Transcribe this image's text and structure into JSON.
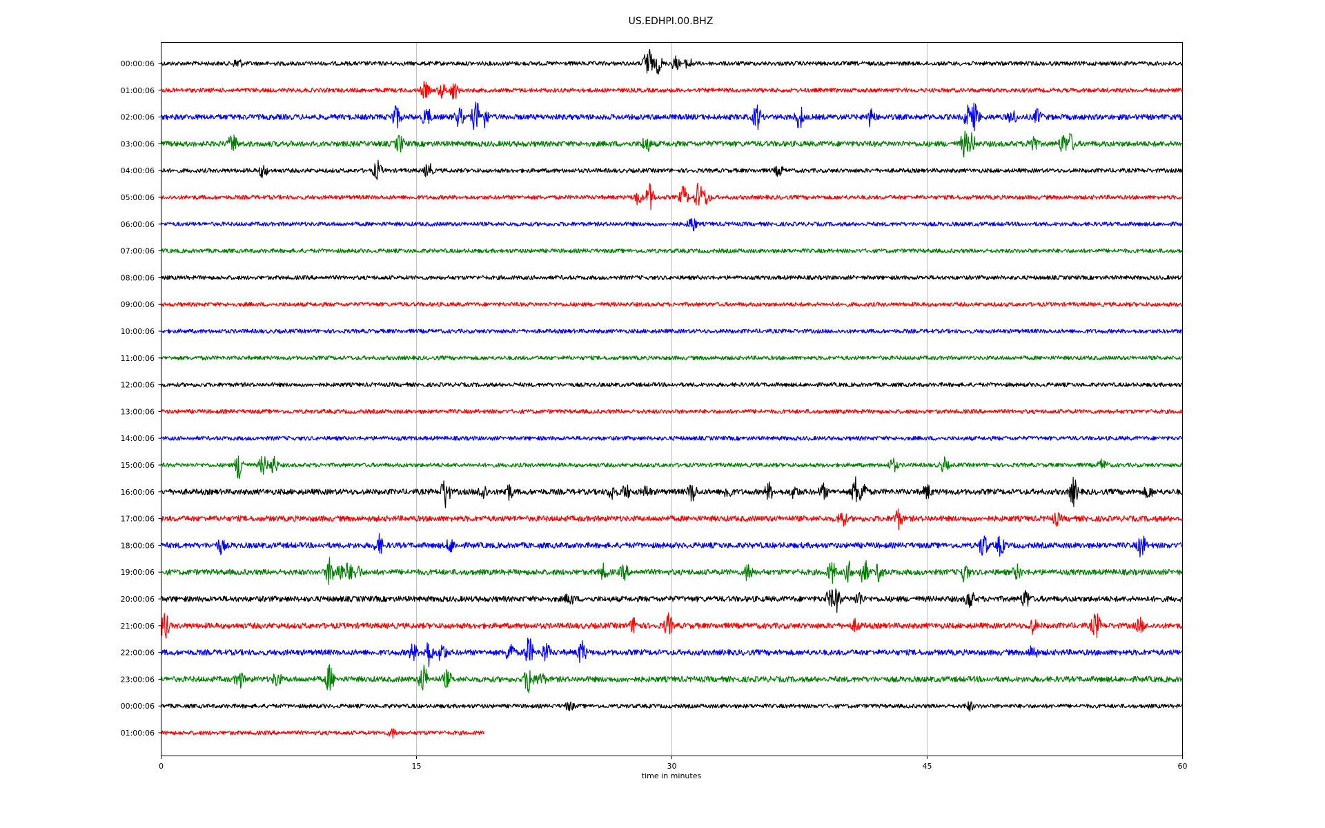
{
  "chart_data": {
    "type": "line",
    "title": "US.EDHPI.00.BHZ",
    "xlabel": "time in minutes",
    "xlim": [
      0,
      60
    ],
    "xticks": [
      "0",
      "15",
      "30",
      "45",
      "60"
    ],
    "grid_x": true,
    "row_labels": [
      "00:00:06",
      "01:00:06",
      "02:00:06",
      "03:00:06",
      "04:00:06",
      "05:00:06",
      "06:00:06",
      "07:00:06",
      "08:00:06",
      "09:00:06",
      "10:00:06",
      "11:00:06",
      "12:00:06",
      "13:00:06",
      "14:00:06",
      "15:00:06",
      "16:00:06",
      "17:00:06",
      "18:00:06",
      "19:00:06",
      "20:00:06",
      "21:00:06",
      "22:00:06",
      "23:00:06",
      "00:00:06",
      "01:00:06"
    ],
    "row_colors": [
      "#000000",
      "#ff0000",
      "#0000ff",
      "#008000"
    ],
    "row_end_minutes": [
      60,
      60,
      60,
      60,
      60,
      60,
      60,
      60,
      60,
      60,
      60,
      60,
      60,
      60,
      60,
      60,
      60,
      60,
      60,
      60,
      60,
      60,
      60,
      60,
      60,
      19
    ],
    "noise_level": [
      3,
      3,
      4,
      4,
      3,
      3,
      3,
      3,
      3,
      3,
      3,
      3,
      3,
      3,
      3,
      3,
      4,
      4,
      4,
      4,
      4,
      4,
      4,
      4,
      3,
      3
    ],
    "events": [
      [
        [
          4.5,
          8
        ],
        [
          28.6,
          30
        ],
        [
          29.2,
          14
        ],
        [
          30.2,
          10
        ],
        [
          31,
          8
        ]
      ],
      [
        [
          15.5,
          12
        ],
        [
          16.5,
          10
        ],
        [
          17.2,
          14
        ]
      ],
      [
        [
          13.8,
          18
        ],
        [
          15.6,
          14
        ],
        [
          17.5,
          14
        ],
        [
          18.5,
          24
        ],
        [
          19,
          14
        ],
        [
          35,
          18
        ],
        [
          37.5,
          18
        ],
        [
          41.7,
          14
        ],
        [
          47.4,
          16
        ],
        [
          47.8,
          20
        ],
        [
          50,
          10
        ],
        [
          51.5,
          10
        ]
      ],
      [
        [
          4.2,
          14
        ],
        [
          14,
          12
        ],
        [
          28.5,
          12
        ],
        [
          47.2,
          18
        ],
        [
          47.6,
          14
        ],
        [
          51.2,
          14
        ],
        [
          53,
          14
        ],
        [
          53.4,
          14
        ]
      ],
      [
        [
          6,
          10
        ],
        [
          12.7,
          14
        ],
        [
          15.7,
          12
        ],
        [
          36.3,
          8
        ]
      ],
      [
        [
          28,
          10
        ],
        [
          28.7,
          20
        ],
        [
          30.7,
          16
        ],
        [
          31.6,
          24
        ],
        [
          32,
          12
        ]
      ],
      [
        [
          31.2,
          12
        ]
      ],
      [],
      [],
      [],
      [],
      [],
      [],
      [],
      [],
      [
        [
          4.6,
          24
        ],
        [
          6,
          14
        ],
        [
          6.6,
          14
        ],
        [
          43,
          10
        ],
        [
          46,
          10
        ],
        [
          55.3,
          8
        ]
      ],
      [
        [
          16.7,
          24
        ],
        [
          18.9,
          12
        ],
        [
          20.4,
          12
        ],
        [
          26.5,
          10
        ],
        [
          27.3,
          10
        ],
        [
          28.5,
          8
        ],
        [
          31.2,
          14
        ],
        [
          33.3,
          10
        ],
        [
          35.7,
          12
        ],
        [
          37.2,
          8
        ],
        [
          38.9,
          10
        ],
        [
          40.8,
          20
        ],
        [
          41.2,
          18
        ],
        [
          45,
          10
        ],
        [
          53.6,
          20
        ],
        [
          58,
          8
        ]
      ],
      [
        [
          40,
          12
        ],
        [
          43.3,
          14
        ],
        [
          52.6,
          8
        ]
      ],
      [
        [
          3.5,
          10
        ],
        [
          12.8,
          14
        ],
        [
          17,
          10
        ],
        [
          48.3,
          18
        ],
        [
          49.3,
          14
        ],
        [
          57.6,
          18
        ]
      ],
      [
        [
          9.9,
          20
        ],
        [
          10.5,
          14
        ],
        [
          11,
          14
        ],
        [
          11.5,
          10
        ],
        [
          34.5,
          14
        ],
        [
          26,
          10
        ],
        [
          27.2,
          10
        ],
        [
          39.4,
          16
        ],
        [
          40.4,
          14
        ],
        [
          41.3,
          20
        ],
        [
          42.2,
          14
        ],
        [
          47.2,
          14
        ],
        [
          50.3,
          10
        ]
      ],
      [
        [
          24,
          8
        ],
        [
          39.3,
          14
        ],
        [
          39.7,
          16
        ],
        [
          41,
          10
        ],
        [
          47.5,
          14
        ],
        [
          50.8,
          14
        ]
      ],
      [
        [
          0.2,
          20
        ],
        [
          27.8,
          12
        ],
        [
          29.8,
          16
        ],
        [
          40.8,
          8
        ],
        [
          51.2,
          10
        ],
        [
          54.9,
          20
        ],
        [
          57.5,
          10
        ]
      ],
      [
        [
          14.8,
          12
        ],
        [
          15.7,
          20
        ],
        [
          16.5,
          14
        ],
        [
          20.5,
          16
        ],
        [
          21.6,
          22
        ],
        [
          22.6,
          14
        ],
        [
          24.7,
          18
        ],
        [
          51.2,
          10
        ]
      ],
      [
        [
          4.6,
          12
        ],
        [
          6.8,
          10
        ],
        [
          9.9,
          20
        ],
        [
          15.4,
          22
        ],
        [
          16.8,
          12
        ],
        [
          21.6,
          24
        ],
        [
          22.3,
          10
        ]
      ],
      [
        [
          24,
          6
        ],
        [
          47.5,
          6
        ]
      ],
      [
        [
          13.6,
          6
        ]
      ]
    ]
  }
}
